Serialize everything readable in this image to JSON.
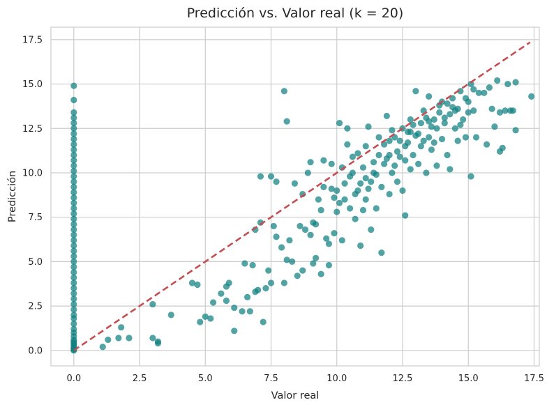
{
  "chart_data": {
    "type": "scatter",
    "title": "Predicción vs. Valor real (k = 20)",
    "xlabel": "Valor real",
    "ylabel": "Predicción",
    "xlim": [
      -0.87,
      17.7
    ],
    "ylim": [
      -0.87,
      18.2
    ],
    "xticks": [
      0,
      2.5,
      5,
      7.5,
      10,
      12.5,
      15,
      17.5
    ],
    "yticks": [
      0,
      2.5,
      5,
      7.5,
      10,
      12.5,
      15,
      17.5
    ],
    "grid": true,
    "point_color": "#0f7f80",
    "reference_line": {
      "x": [
        0,
        17.35
      ],
      "y": [
        0,
        17.35
      ],
      "color": "#c44e52",
      "style": "dashed"
    },
    "zero_column_y": [
      0.0,
      0.05,
      0.1,
      0.2,
      0.3,
      0.4,
      0.5,
      0.6,
      0.8,
      1.0,
      1.2,
      1.5,
      1.8,
      2.0,
      2.3,
      2.6,
      2.9,
      3.2,
      3.5,
      3.8,
      4.1,
      4.4,
      4.7,
      5.0,
      5.3,
      5.6,
      5.9,
      6.2,
      6.5,
      6.8,
      7.1,
      7.4,
      7.7,
      8.0,
      8.3,
      8.6,
      8.9,
      9.2,
      9.5,
      9.8,
      10.1,
      10.4,
      10.7,
      11.0,
      11.3,
      11.6,
      11.9,
      12.2,
      12.5,
      12.8,
      13.1,
      13.4,
      14.1,
      14.9
    ],
    "points": [
      [
        1.1,
        0.2
      ],
      [
        1.3,
        0.6
      ],
      [
        1.7,
        0.7
      ],
      [
        1.8,
        1.3
      ],
      [
        2.1,
        0.7
      ],
      [
        3.0,
        2.6
      ],
      [
        3.0,
        0.7
      ],
      [
        3.2,
        0.5
      ],
      [
        3.2,
        0.4
      ],
      [
        3.7,
        2.0
      ],
      [
        4.5,
        3.8
      ],
      [
        4.7,
        3.7
      ],
      [
        4.8,
        1.6
      ],
      [
        5.0,
        1.9
      ],
      [
        5.2,
        1.8
      ],
      [
        5.3,
        2.7
      ],
      [
        5.6,
        3.2
      ],
      [
        5.8,
        3.6
      ],
      [
        5.9,
        3.8
      ],
      [
        5.8,
        2.8
      ],
      [
        6.1,
        1.1
      ],
      [
        6.1,
        2.4
      ],
      [
        6.4,
        2.2
      ],
      [
        6.5,
        4.9
      ],
      [
        6.6,
        3.0
      ],
      [
        6.7,
        2.2
      ],
      [
        6.8,
        4.8
      ],
      [
        6.9,
        3.3
      ],
      [
        7.0,
        3.4
      ],
      [
        6.9,
        6.8
      ],
      [
        7.1,
        7.2
      ],
      [
        7.2,
        1.6
      ],
      [
        7.1,
        9.8
      ],
      [
        7.3,
        3.5
      ],
      [
        7.4,
        4.5
      ],
      [
        7.5,
        3.8
      ],
      [
        7.5,
        9.8
      ],
      [
        7.6,
        7.0
      ],
      [
        7.7,
        6.4
      ],
      [
        7.7,
        9.5
      ],
      [
        7.9,
        5.8
      ],
      [
        8.0,
        3.8
      ],
      [
        8.0,
        14.6
      ],
      [
        8.1,
        5.1
      ],
      [
        8.1,
        12.9
      ],
      [
        8.2,
        6.2
      ],
      [
        8.3,
        5.0
      ],
      [
        8.4,
        9.4
      ],
      [
        8.5,
        4.2
      ],
      [
        8.6,
        7.0
      ],
      [
        8.7,
        8.8
      ],
      [
        8.7,
        4.5
      ],
      [
        8.8,
        6.8
      ],
      [
        8.9,
        10.0
      ],
      [
        9.0,
        6.5
      ],
      [
        9.0,
        10.6
      ],
      [
        9.1,
        7.2
      ],
      [
        9.1,
        4.9
      ],
      [
        9.2,
        5.2
      ],
      [
        9.3,
        8.5
      ],
      [
        9.4,
        4.3
      ],
      [
        9.5,
        10.7
      ],
      [
        9.5,
        9.2
      ],
      [
        9.6,
        6.3
      ],
      [
        9.7,
        4.8
      ],
      [
        9.7,
        6.0
      ],
      [
        9.8,
        10.5
      ],
      [
        9.9,
        6.6
      ],
      [
        10.0,
        7.8
      ],
      [
        10.0,
        9.0
      ],
      [
        10.1,
        12.8
      ],
      [
        10.2,
        10.3
      ],
      [
        10.2,
        6.2
      ],
      [
        10.3,
        8.5
      ],
      [
        10.4,
        11.6
      ],
      [
        10.4,
        12.5
      ],
      [
        10.5,
        9.8
      ],
      [
        10.5,
        8.0
      ],
      [
        10.6,
        10.9
      ],
      [
        10.7,
        7.4
      ],
      [
        10.8,
        11.1
      ],
      [
        10.8,
        9.0
      ],
      [
        10.9,
        5.9
      ],
      [
        11.0,
        10.3
      ],
      [
        11.0,
        7.9
      ],
      [
        11.1,
        11.5
      ],
      [
        11.1,
        8.5
      ],
      [
        11.2,
        12.6
      ],
      [
        11.3,
        9.5
      ],
      [
        11.3,
        6.8
      ],
      [
        11.4,
        10.0
      ],
      [
        11.5,
        8.0
      ],
      [
        11.6,
        11.0
      ],
      [
        11.6,
        12.0
      ],
      [
        11.7,
        9.2
      ],
      [
        11.7,
        5.5
      ],
      [
        11.8,
        10.5
      ],
      [
        11.9,
        13.2
      ],
      [
        12.0,
        8.8
      ],
      [
        12.0,
        11.8
      ],
      [
        12.1,
        10.0
      ],
      [
        12.2,
        12.0
      ],
      [
        12.3,
        9.5
      ],
      [
        12.3,
        11.2
      ],
      [
        12.4,
        10.9
      ],
      [
        12.5,
        12.5
      ],
      [
        12.5,
        9.0
      ],
      [
        12.6,
        7.6
      ],
      [
        12.6,
        11.5
      ],
      [
        12.7,
        12.3
      ],
      [
        12.8,
        10.2
      ],
      [
        12.8,
        13.0
      ],
      [
        12.9,
        11.0
      ],
      [
        13.0,
        12.1
      ],
      [
        13.0,
        14.6
      ],
      [
        13.1,
        10.5
      ],
      [
        13.2,
        12.8
      ],
      [
        13.2,
        11.5
      ],
      [
        13.3,
        13.5
      ],
      [
        13.4,
        10.0
      ],
      [
        13.5,
        12.0
      ],
      [
        13.5,
        14.3
      ],
      [
        13.6,
        11.3
      ],
      [
        13.7,
        13.0
      ],
      [
        13.8,
        12.5
      ],
      [
        13.8,
        10.4
      ],
      [
        13.9,
        13.8
      ],
      [
        14.0,
        11.9
      ],
      [
        14.0,
        14.0
      ],
      [
        14.1,
        12.8
      ],
      [
        14.2,
        11.0
      ],
      [
        14.3,
        13.3
      ],
      [
        14.3,
        10.2
      ],
      [
        14.4,
        14.2
      ],
      [
        14.5,
        12.5
      ],
      [
        14.6,
        13.6
      ],
      [
        14.6,
        11.8
      ],
      [
        14.7,
        14.6
      ],
      [
        14.8,
        13.0
      ],
      [
        14.9,
        12.0
      ],
      [
        15.0,
        14.0
      ],
      [
        15.0,
        13.4
      ],
      [
        15.1,
        9.8
      ],
      [
        15.1,
        15.0
      ],
      [
        15.2,
        13.5
      ],
      [
        15.3,
        12.0
      ],
      [
        15.4,
        14.5
      ],
      [
        15.6,
        14.5
      ],
      [
        15.7,
        11.6
      ],
      [
        15.8,
        14.8
      ],
      [
        15.9,
        13.6
      ],
      [
        16.0,
        12.6
      ],
      [
        16.1,
        15.2
      ],
      [
        16.2,
        13.4
      ],
      [
        16.2,
        11.2
      ],
      [
        16.3,
        11.4
      ],
      [
        16.4,
        13.5
      ],
      [
        16.5,
        15.0
      ],
      [
        16.6,
        13.5
      ],
      [
        16.7,
        13.5
      ],
      [
        16.8,
        12.4
      ],
      [
        16.8,
        15.1
      ],
      [
        17.4,
        14.3
      ],
      [
        11.5,
        9.9
      ],
      [
        12.0,
        11.0
      ],
      [
        12.2,
        10.4
      ],
      [
        12.7,
        11.7
      ],
      [
        13.1,
        12.2
      ],
      [
        13.6,
        12.6
      ],
      [
        14.1,
        13.1
      ],
      [
        14.4,
        13.7
      ],
      [
        14.9,
        14.2
      ],
      [
        10.9,
        9.4
      ],
      [
        11.4,
        10.6
      ],
      [
        11.8,
        11.6
      ],
      [
        12.4,
        11.8
      ],
      [
        12.9,
        12.7
      ],
      [
        13.4,
        13.1
      ],
      [
        13.9,
        13.4
      ],
      [
        14.2,
        13.9
      ],
      [
        9.8,
        9.1
      ],
      [
        10.3,
        9.4
      ],
      [
        10.6,
        10.0
      ],
      [
        11.1,
        9.7
      ],
      [
        11.9,
        10.8
      ],
      [
        12.6,
        10.7
      ],
      [
        13.3,
        11.8
      ],
      [
        13.7,
        11.7
      ],
      [
        14.7,
        12.7
      ],
      [
        9.4,
        7.9
      ],
      [
        10.1,
        8.3
      ],
      [
        10.7,
        8.8
      ],
      [
        11.2,
        9.1
      ],
      [
        12.1,
        12.4
      ],
      [
        12.8,
        12.3
      ],
      [
        13.5,
        12.9
      ],
      [
        14.5,
        13.5
      ],
      [
        15.2,
        14.7
      ],
      [
        9.2,
        7.1
      ],
      [
        9.9,
        8.6
      ]
    ]
  }
}
